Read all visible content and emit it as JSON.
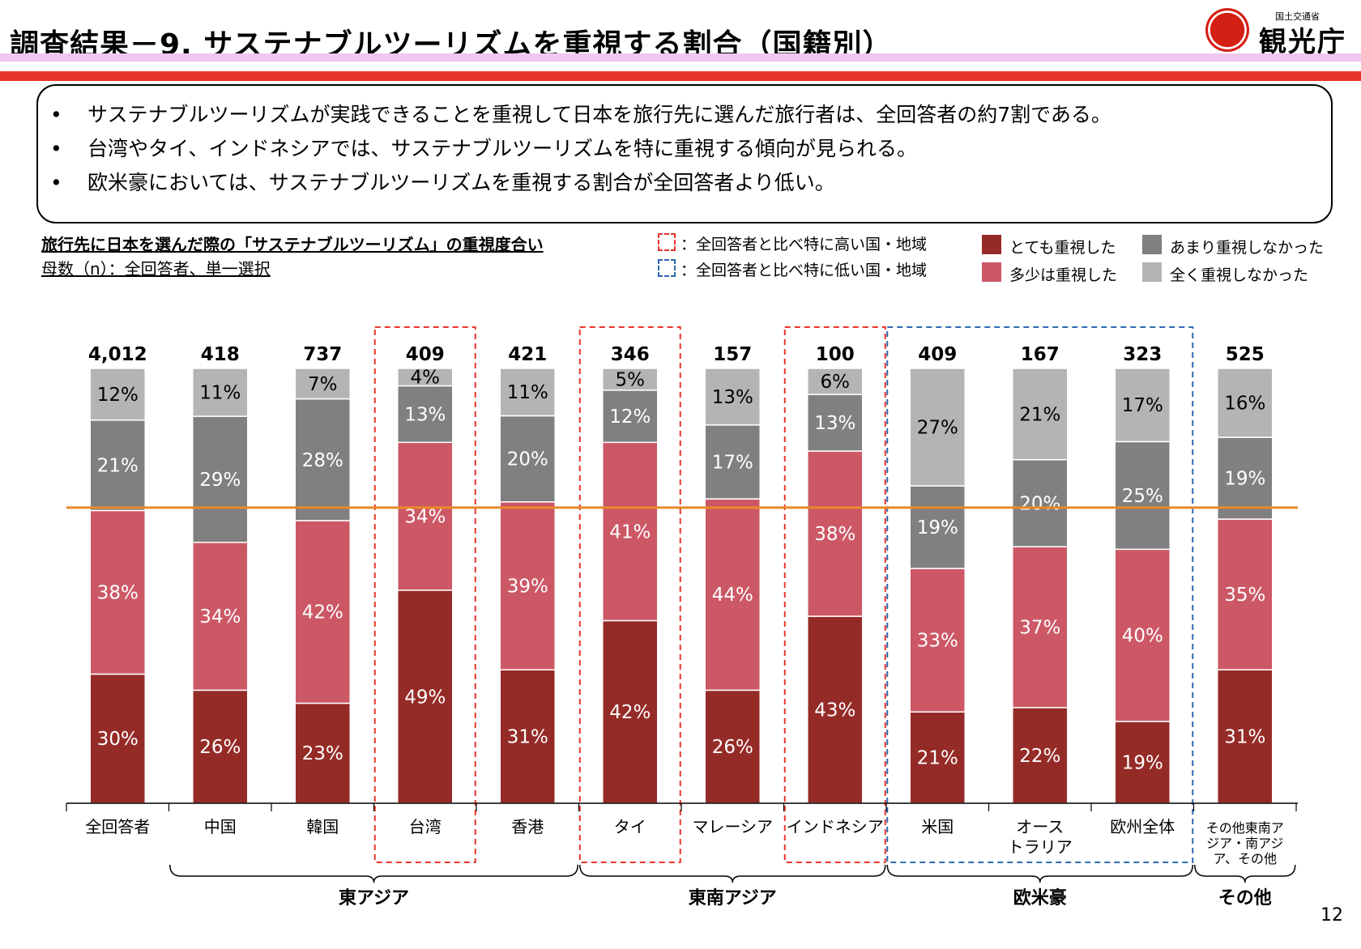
{
  "header": {
    "title": "調査結果－9. サステナブルツーリズムを重視する割合（国籍別）",
    "logo_small": "国土交通省",
    "logo_big": "観光庁"
  },
  "summary": {
    "bullet": "•",
    "lines": [
      "サステナブルツーリズムが実践できることを重視して日本を旅行先に選んだ旅行者は、全回答者の約7割である。",
      "台湾やタイ、インドネシアでは、サステナブルツーリズムを特に重視する傾向が見られる。",
      "欧米豪においては、サステナブルツーリズムを重視する割合が全回答者より低い。"
    ]
  },
  "subtitle": {
    "line1": "旅行先に日本を選んだ際の「サステナブルツーリズム」の重視度合い",
    "line2": "母数（n）：全回答者、単一選択"
  },
  "legend": {
    "high_box": "：全回答者と比べ特に高い国・地域",
    "low_box": "：全回答者と比べ特に低い国・地域",
    "high_color": "#e8352a",
    "low_color": "#2e6ab2",
    "items": [
      {
        "label": "とても重視した",
        "color": "#952b27"
      },
      {
        "label": "あまり重視しなかった",
        "color": "#808080"
      },
      {
        "label": "多少は重視した",
        "color": "#cc5866"
      },
      {
        "label": "全く重視しなかった",
        "color": "#b4b4b4"
      }
    ]
  },
  "chart_data": {
    "type": "bar",
    "stacked": true,
    "percent": true,
    "categories": [
      "全回答者",
      "中国",
      "韓国",
      "台湾",
      "香港",
      "タイ",
      "マレーシア",
      "インドネシア",
      "米国",
      "オース トラリア",
      "欧州全体",
      "その他東南アジア・南アジア、その他"
    ],
    "category_lines": [
      [
        "全回答者"
      ],
      [
        "中国"
      ],
      [
        "韓国"
      ],
      [
        "台湾"
      ],
      [
        "香港"
      ],
      [
        "タイ"
      ],
      [
        "マレーシア"
      ],
      [
        "インドネシア"
      ],
      [
        "米国"
      ],
      [
        "オース",
        "トラリア"
      ],
      [
        "欧州全体"
      ],
      [
        "その他東南ア",
        "ジア・南アジ",
        "ア、その他"
      ]
    ],
    "n": [
      "4,012",
      "418",
      "737",
      "409",
      "421",
      "346",
      "157",
      "100",
      "409",
      "167",
      "323",
      "525"
    ],
    "series": [
      {
        "name": "とても重視した",
        "color": "#952b27",
        "values": [
          30,
          26,
          23,
          49,
          31,
          42,
          26,
          43,
          21,
          22,
          19,
          31
        ]
      },
      {
        "name": "多少は重視した",
        "color": "#cc5866",
        "values": [
          38,
          34,
          42,
          34,
          39,
          41,
          44,
          38,
          33,
          37,
          40,
          35
        ]
      },
      {
        "name": "あまり重視しなかった",
        "color": "#808080",
        "values": [
          21,
          29,
          28,
          13,
          20,
          12,
          17,
          13,
          19,
          20,
          25,
          19
        ]
      },
      {
        "name": "全く重視しなかった",
        "color": "#b4b4b4",
        "values": [
          12,
          11,
          7,
          4,
          11,
          5,
          13,
          6,
          27,
          21,
          17,
          16
        ]
      }
    ],
    "reference_line": 68,
    "reference_color": "#e8892a",
    "ylim": [
      0,
      100
    ],
    "highlight_high": [
      "台湾",
      "タイ",
      "インドネシア"
    ],
    "highlight_low": [
      "米国",
      "オース トラリア",
      "欧州全体"
    ],
    "groups": [
      {
        "label": "東アジア",
        "from": 1,
        "to": 4
      },
      {
        "label": "東南アジア",
        "from": 5,
        "to": 7
      },
      {
        "label": "欧米豪",
        "from": 8,
        "to": 10
      },
      {
        "label": "その他",
        "from": 11,
        "to": 11
      }
    ]
  },
  "page_number": "12"
}
